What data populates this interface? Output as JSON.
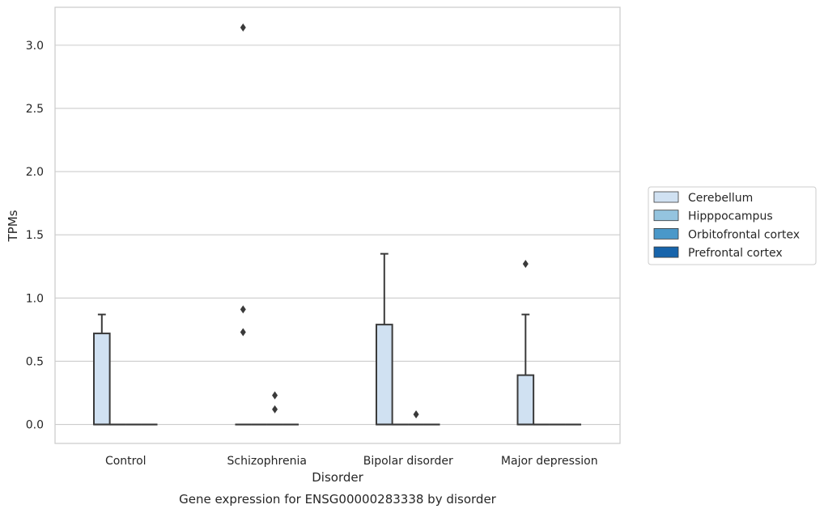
{
  "caption": "Gene expression for ENSG00000283338 by disorder",
  "chart_data": {
    "type": "box",
    "title": "",
    "xlabel": "Disorder",
    "ylabel": "TPMs",
    "ylim": [
      -0.15,
      3.3
    ],
    "yticks": [
      "0.0",
      "0.5",
      "1.0",
      "1.5",
      "2.0",
      "2.5",
      "3.0"
    ],
    "categories": [
      "Control",
      "Schizophrenia",
      "Bipolar disorder",
      "Major depression"
    ],
    "grid": "horizontal",
    "legend_position": "right",
    "hue_order": [
      "Cerebellum",
      "Hipppocampus",
      "Orbitofrontal cortex",
      "Prefrontal cortex"
    ],
    "colors": {
      "Cerebellum": "#d0e1f2",
      "Hipppocampus": "#94c4df",
      "Orbitofrontal cortex": "#4a98c9",
      "Prefrontal cortex": "#1764ab",
      "edge": "#3a3a3a",
      "grid": "#cccccc"
    },
    "series": [
      {
        "name": "Cerebellum",
        "boxes": [
          {
            "category": "Control",
            "q1": 0.0,
            "median": 0.0,
            "q3": 0.72,
            "whisker_low": 0.0,
            "whisker_high": 0.87,
            "outliers": []
          },
          {
            "category": "Schizophrenia",
            "q1": 0.0,
            "median": 0.0,
            "q3": 0.0,
            "whisker_low": 0.0,
            "whisker_high": 0.0,
            "outliers": [
              3.14,
              0.91,
              0.73
            ]
          },
          {
            "category": "Bipolar disorder",
            "q1": 0.0,
            "median": 0.0,
            "q3": 0.79,
            "whisker_low": 0.0,
            "whisker_high": 1.35,
            "outliers": []
          },
          {
            "category": "Major depression",
            "q1": 0.0,
            "median": 0.0,
            "q3": 0.39,
            "whisker_low": 0.0,
            "whisker_high": 0.87,
            "outliers": [
              1.27
            ]
          }
        ]
      },
      {
        "name": "Hipppocampus",
        "boxes": [
          {
            "category": "Control",
            "q1": 0.0,
            "median": 0.0,
            "q3": 0.0,
            "whisker_low": 0.0,
            "whisker_high": 0.0,
            "outliers": []
          },
          {
            "category": "Schizophrenia",
            "q1": 0.0,
            "median": 0.0,
            "q3": 0.0,
            "whisker_low": 0.0,
            "whisker_high": 0.0,
            "outliers": []
          },
          {
            "category": "Bipolar disorder",
            "q1": 0.0,
            "median": 0.0,
            "q3": 0.0,
            "whisker_low": 0.0,
            "whisker_high": 0.0,
            "outliers": []
          },
          {
            "category": "Major depression",
            "q1": 0.0,
            "median": 0.0,
            "q3": 0.0,
            "whisker_low": 0.0,
            "whisker_high": 0.0,
            "outliers": []
          }
        ]
      },
      {
        "name": "Orbitofrontal cortex",
        "boxes": [
          {
            "category": "Control",
            "q1": 0.0,
            "median": 0.0,
            "q3": 0.0,
            "whisker_low": 0.0,
            "whisker_high": 0.0,
            "outliers": []
          },
          {
            "category": "Schizophrenia",
            "q1": 0.0,
            "median": 0.0,
            "q3": 0.0,
            "whisker_low": 0.0,
            "whisker_high": 0.0,
            "outliers": [
              0.23,
              0.12
            ]
          },
          {
            "category": "Bipolar disorder",
            "q1": 0.0,
            "median": 0.0,
            "q3": 0.0,
            "whisker_low": 0.0,
            "whisker_high": 0.0,
            "outliers": [
              0.08
            ]
          },
          {
            "category": "Major depression",
            "q1": 0.0,
            "median": 0.0,
            "q3": 0.0,
            "whisker_low": 0.0,
            "whisker_high": 0.0,
            "outliers": []
          }
        ]
      },
      {
        "name": "Prefrontal cortex",
        "boxes": [
          {
            "category": "Control",
            "q1": 0.0,
            "median": 0.0,
            "q3": 0.0,
            "whisker_low": 0.0,
            "whisker_high": 0.0,
            "outliers": []
          },
          {
            "category": "Schizophrenia",
            "q1": 0.0,
            "median": 0.0,
            "q3": 0.0,
            "whisker_low": 0.0,
            "whisker_high": 0.0,
            "outliers": []
          },
          {
            "category": "Bipolar disorder",
            "q1": 0.0,
            "median": 0.0,
            "q3": 0.0,
            "whisker_low": 0.0,
            "whisker_high": 0.0,
            "outliers": []
          },
          {
            "category": "Major depression",
            "q1": 0.0,
            "median": 0.0,
            "q3": 0.0,
            "whisker_low": 0.0,
            "whisker_high": 0.0,
            "outliers": []
          }
        ]
      }
    ]
  }
}
